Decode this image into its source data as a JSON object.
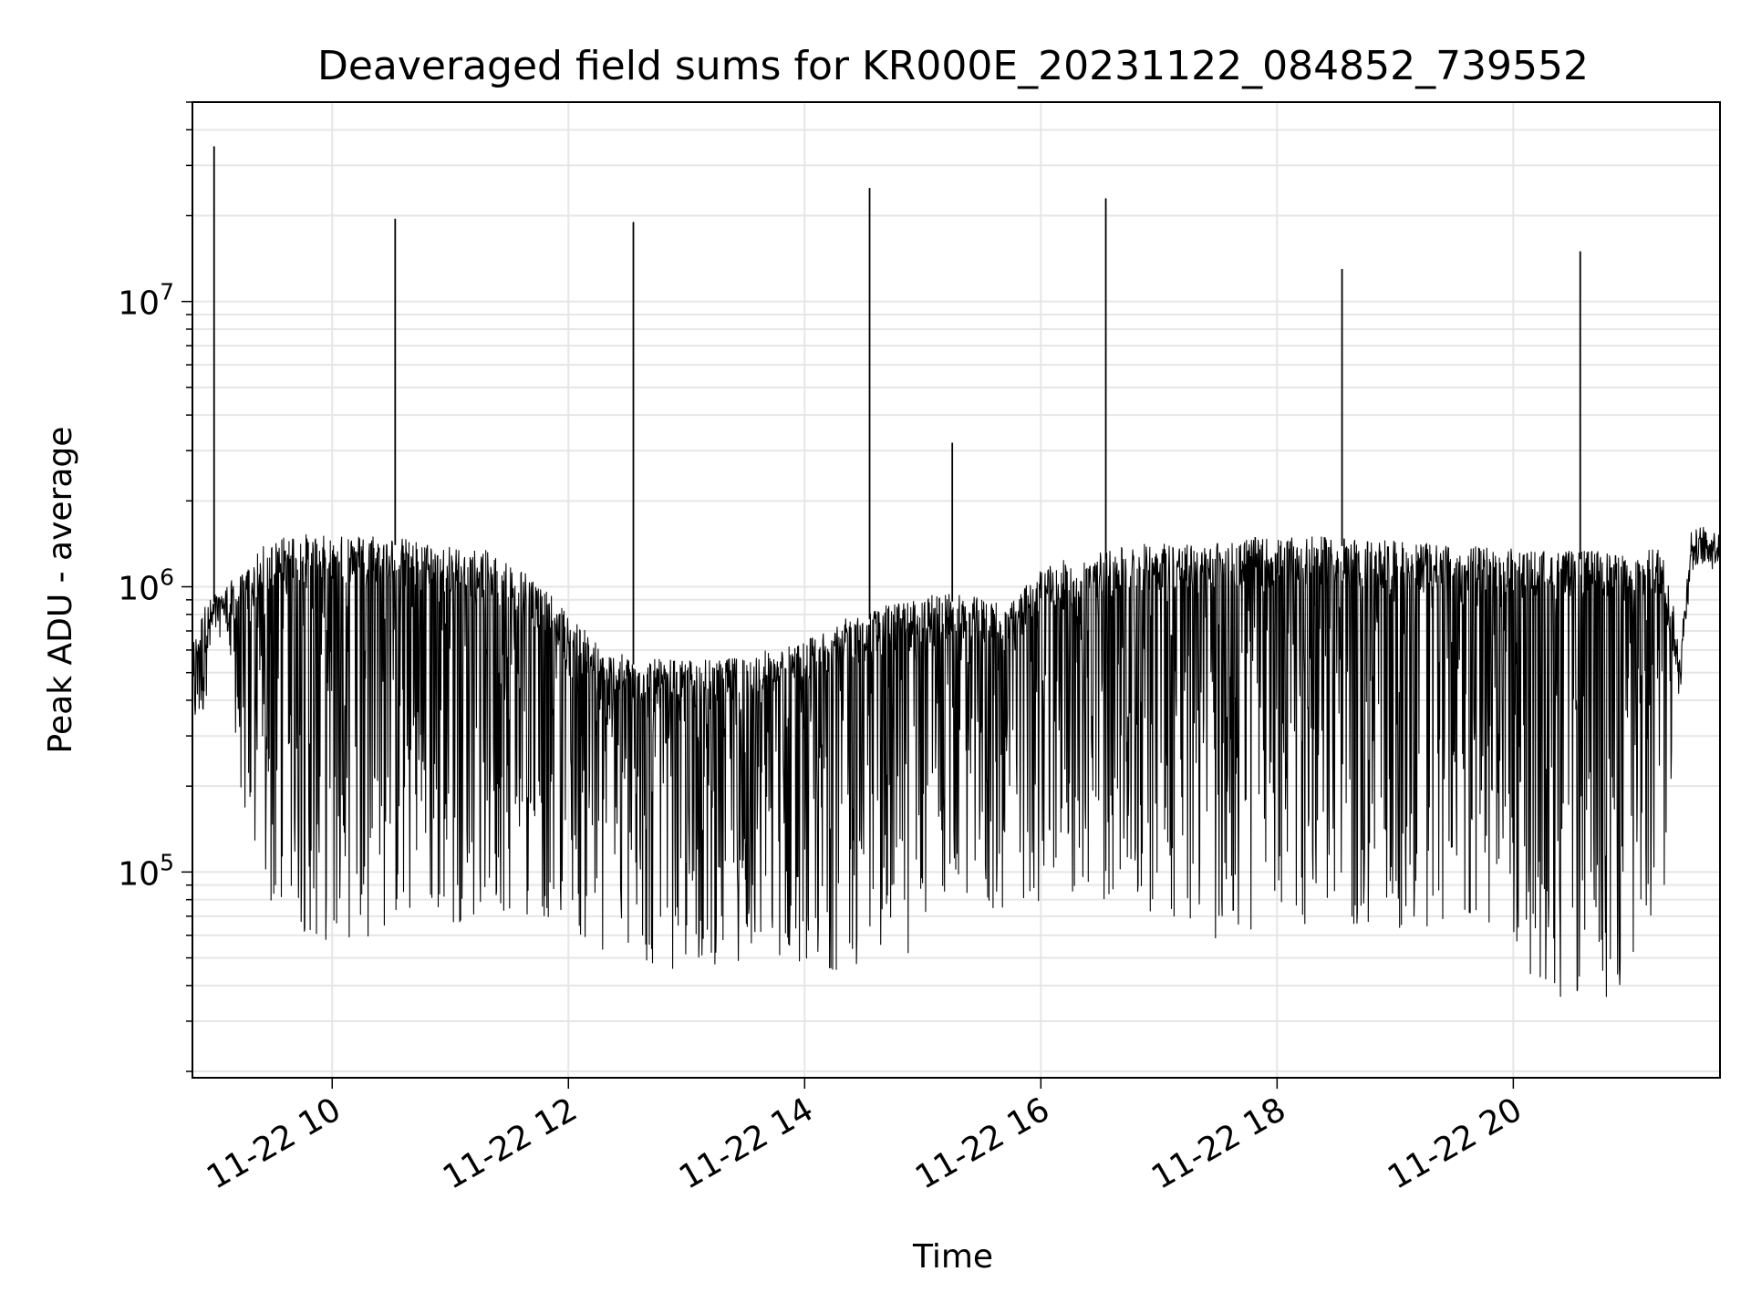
{
  "chart_data": {
    "type": "line",
    "title": "Deaveraged field sums for KR000E_20231122_084852_739552",
    "xlabel": "Time",
    "ylabel": "Peak ADU - average",
    "yscale": "log",
    "xlim": [
      "2023-11-22 08:49",
      "2023-11-22 21:45"
    ],
    "ylim": [
      19000,
      50000000
    ],
    "grid": true,
    "line_color": "#000000",
    "x_ticks": [
      {
        "value": "2023-11-22 10:00",
        "label": "11-22 10"
      },
      {
        "value": "2023-11-22 12:00",
        "label": "11-22 12"
      },
      {
        "value": "2023-11-22 14:00",
        "label": "11-22 14"
      },
      {
        "value": "2023-11-22 16:00",
        "label": "11-22 16"
      },
      {
        "value": "2023-11-22 18:00",
        "label": "11-22 18"
      },
      {
        "value": "2023-11-22 20:00",
        "label": "11-22 20"
      }
    ],
    "y_ticks": [
      {
        "value": 100000,
        "base": "10",
        "exp": "5"
      },
      {
        "value": 1000000,
        "base": "10",
        "exp": "6"
      },
      {
        "value": 10000000,
        "base": "10",
        "exp": "7"
      }
    ],
    "series": [
      {
        "x": [
          "2023-11-22 08:49",
          "2023-11-22 08:55",
          "2023-11-22 09:00",
          "2023-11-22 09:01",
          "2023-11-22 09:05",
          "2023-11-22 09:15",
          "2023-11-22 09:25",
          "2023-11-22 09:40",
          "2023-11-22 10:00",
          "2023-11-22 10:20",
          "2023-11-22 10:32",
          "2023-11-22 10:45",
          "2023-11-22 11:00",
          "2023-11-22 11:20",
          "2023-11-22 11:40",
          "2023-11-22 12:00",
          "2023-11-22 12:20",
          "2023-11-22 12:33",
          "2023-11-22 12:45",
          "2023-11-22 13:00",
          "2023-11-22 13:20",
          "2023-11-22 13:40",
          "2023-11-22 14:00",
          "2023-11-22 14:15",
          "2023-11-22 14:33",
          "2023-11-22 14:45",
          "2023-11-22 15:00",
          "2023-11-22 15:10",
          "2023-11-22 15:15",
          "2023-11-22 15:30",
          "2023-11-22 15:45",
          "2023-11-22 16:00",
          "2023-11-22 16:20",
          "2023-11-22 16:33",
          "2023-11-22 16:45",
          "2023-11-22 17:00",
          "2023-11-22 17:20",
          "2023-11-22 17:40",
          "2023-11-22 18:00",
          "2023-11-22 18:20",
          "2023-11-22 18:33",
          "2023-11-22 18:45",
          "2023-11-22 19:00",
          "2023-11-22 19:20",
          "2023-11-22 19:40",
          "2023-11-22 20:00",
          "2023-11-22 20:20",
          "2023-11-22 20:34",
          "2023-11-22 20:45",
          "2023-11-22 21:00",
          "2023-11-22 21:15",
          "2023-11-22 21:25",
          "2023-11-22 21:30",
          "2023-11-22 21:45"
        ],
        "y": [
          600000,
          800000,
          35000000,
          900000,
          950000,
          1050000,
          1300000,
          1450000,
          1400000,
          1450000,
          19500000,
          1350000,
          1300000,
          1250000,
          1050000,
          750000,
          550000,
          19000000,
          520000,
          520000,
          520000,
          560000,
          600000,
          700000,
          25000000,
          820000,
          850000,
          900000,
          3200000,
          850000,
          820000,
          1100000,
          1200000,
          23000000,
          1300000,
          1350000,
          1300000,
          1400000,
          1380000,
          1400000,
          13000000,
          1380000,
          1350000,
          1320000,
          1300000,
          1270000,
          1250000,
          15000000,
          1250000,
          1200000,
          1300000,
          600000,
          1500000,
          1600000
        ],
        "y_low": [
          300000,
          350000,
          null,
          900000,
          800000,
          150000,
          70000,
          60000,
          55000,
          60000,
          null,
          65000,
          65000,
          70000,
          70000,
          65000,
          45000,
          null,
          45000,
          45000,
          48000,
          50000,
          48000,
          45000,
          null,
          48000,
          55000,
          80000,
          null,
          70000,
          70000,
          80000,
          80000,
          null,
          75000,
          70000,
          60000,
          55000,
          65000,
          65000,
          null,
          60000,
          55000,
          55000,
          60000,
          50000,
          35000,
          null,
          35000,
          40000,
          60000,
          500000,
          1200000,
          1200000
        ]
      }
    ]
  }
}
